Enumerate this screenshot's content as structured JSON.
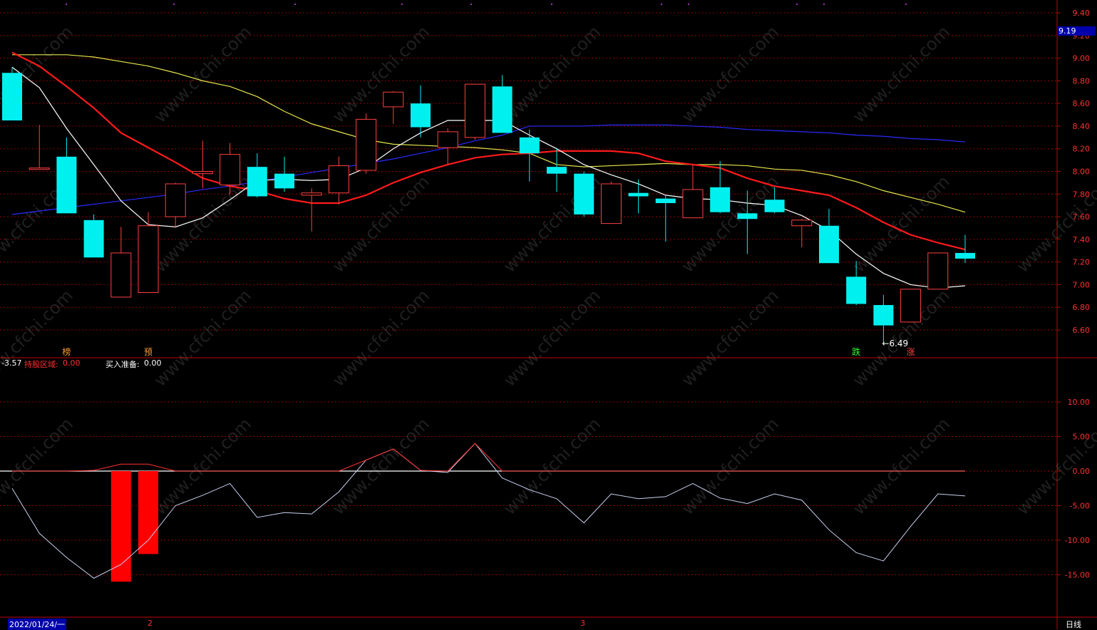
{
  "colors": {
    "background": "#000000",
    "grid": "#8b0000",
    "border": "#c00000",
    "up": "#ff4040",
    "down": "#00f0f0",
    "ma5": "#ffffff",
    "ma10": "#ff1a1a",
    "ma20": "#e6e64d",
    "ma60": "#2a2aff",
    "osc_line": "#c8d0f0",
    "osc_up": "#ff3030",
    "bar": "#ff0000",
    "axis_text": "#ff3030",
    "price_tag_bg": "#0000aa"
  },
  "price_axis": {
    "ticks": [
      "9.40",
      "9.20",
      "9.00",
      "8.80",
      "8.60",
      "8.40",
      "8.20",
      "8.00",
      "7.80",
      "7.60",
      "7.40",
      "7.20",
      "7.00",
      "6.80",
      "6.60"
    ],
    "ylim": [
      6.49,
      9.4
    ],
    "current": "9.19"
  },
  "markers": [
    {
      "text": "榜",
      "index": 2,
      "color": "#ff9b30"
    },
    {
      "text": "预",
      "index": 5,
      "color": "#ff9b30"
    },
    {
      "text": "跌",
      "index": 31,
      "color": "#30ff30"
    },
    {
      "text": "涨",
      "index": 33,
      "color": "#ff4040"
    }
  ],
  "low_label": {
    "text": "←6.49",
    "index": 32
  },
  "indicator_header": {
    "value": "-3.57",
    "hold_label": "持股区域:",
    "hold_value": "0.00",
    "buy_label": "买入准备:",
    "buy_value": "0.00"
  },
  "osc_axis": {
    "ticks": [
      "10.00",
      "5.00",
      "0.00",
      "-5.00",
      "-10.00",
      "-15.00"
    ],
    "ylim": [
      -20,
      15
    ]
  },
  "date_bar": {
    "start": "2022/01/24/一",
    "m2": "2",
    "m3": "3",
    "period": "日线"
  },
  "watermark": "www.cfchi.com",
  "chart_data": {
    "type": "candlestick",
    "candles": [
      {
        "o": 8.87,
        "h": 8.92,
        "l": 8.45,
        "c": 8.45
      },
      {
        "o": 8.03,
        "h": 8.41,
        "l": 8.03,
        "c": 8.03
      },
      {
        "o": 8.13,
        "h": 8.3,
        "l": 7.63,
        "c": 7.63
      },
      {
        "o": 7.57,
        "h": 7.62,
        "l": 7.24,
        "c": 7.24
      },
      {
        "o": 6.89,
        "h": 7.51,
        "l": 6.89,
        "c": 7.28
      },
      {
        "o": 6.93,
        "h": 7.64,
        "l": 6.93,
        "c": 7.52
      },
      {
        "o": 7.6,
        "h": 7.9,
        "l": 7.5,
        "c": 7.89
      },
      {
        "o": 7.98,
        "h": 8.27,
        "l": 7.85,
        "c": 8.0
      },
      {
        "o": 7.88,
        "h": 8.25,
        "l": 7.8,
        "c": 8.15
      },
      {
        "o": 8.04,
        "h": 8.16,
        "l": 7.77,
        "c": 7.78
      },
      {
        "o": 7.98,
        "h": 8.13,
        "l": 7.82,
        "c": 7.85
      },
      {
        "o": 7.79,
        "h": 7.85,
        "l": 7.47,
        "c": 7.81
      },
      {
        "o": 7.81,
        "h": 8.13,
        "l": 7.71,
        "c": 8.05
      },
      {
        "o": 8.01,
        "h": 8.51,
        "l": 7.98,
        "c": 8.46
      },
      {
        "o": 8.57,
        "h": 8.71,
        "l": 8.42,
        "c": 8.7
      },
      {
        "o": 8.6,
        "h": 8.76,
        "l": 8.3,
        "c": 8.39
      },
      {
        "o": 8.21,
        "h": 8.38,
        "l": 8.06,
        "c": 8.35
      },
      {
        "o": 8.3,
        "h": 8.77,
        "l": 8.28,
        "c": 8.77
      },
      {
        "o": 8.75,
        "h": 8.85,
        "l": 8.34,
        "c": 8.34
      },
      {
        "o": 8.3,
        "h": 8.37,
        "l": 7.91,
        "c": 8.16
      },
      {
        "o": 8.04,
        "h": 8.2,
        "l": 7.82,
        "c": 7.98
      },
      {
        "o": 7.98,
        "h": 8.0,
        "l": 7.6,
        "c": 7.62
      },
      {
        "o": 7.54,
        "h": 7.91,
        "l": 7.54,
        "c": 7.89
      },
      {
        "o": 7.81,
        "h": 7.93,
        "l": 7.63,
        "c": 7.78
      },
      {
        "o": 7.76,
        "h": 7.79,
        "l": 7.38,
        "c": 7.72
      },
      {
        "o": 7.59,
        "h": 8.06,
        "l": 7.59,
        "c": 7.84
      },
      {
        "o": 7.86,
        "h": 8.09,
        "l": 7.63,
        "c": 7.64
      },
      {
        "o": 7.63,
        "h": 7.83,
        "l": 7.27,
        "c": 7.58
      },
      {
        "o": 7.75,
        "h": 7.86,
        "l": 7.63,
        "c": 7.64
      },
      {
        "o": 7.52,
        "h": 7.58,
        "l": 7.33,
        "c": 7.57
      },
      {
        "o": 7.52,
        "h": 7.67,
        "l": 7.19,
        "c": 7.19
      },
      {
        "o": 7.07,
        "h": 7.21,
        "l": 6.82,
        "c": 6.83
      },
      {
        "o": 6.82,
        "h": 6.91,
        "l": 6.49,
        "c": 6.64
      },
      {
        "o": 6.67,
        "h": 6.96,
        "l": 6.67,
        "c": 6.96
      },
      {
        "o": 6.96,
        "h": 7.28,
        "l": 6.96,
        "c": 7.28
      },
      {
        "o": 7.28,
        "h": 7.44,
        "l": 7.19,
        "c": 7.23
      }
    ],
    "ma5": [
      8.92,
      8.74,
      8.38,
      8.06,
      7.74,
      7.53,
      7.51,
      7.59,
      7.75,
      7.92,
      7.93,
      7.92,
      7.93,
      8.03,
      8.2,
      8.34,
      8.45,
      8.45,
      8.45,
      8.32,
      8.2,
      8.06,
      7.97,
      7.89,
      7.79,
      7.76,
      7.75,
      7.72,
      7.7,
      7.61,
      7.48,
      7.27,
      7.1,
      7.0,
      6.97,
      6.99
    ],
    "ma10": [
      9.05,
      8.93,
      8.75,
      8.56,
      8.34,
      8.21,
      8.08,
      7.94,
      7.87,
      7.83,
      7.76,
      7.72,
      7.72,
      7.79,
      7.9,
      7.99,
      8.06,
      8.12,
      8.15,
      8.16,
      8.18,
      8.18,
      8.18,
      8.16,
      8.09,
      8.06,
      8.03,
      7.94,
      7.87,
      7.83,
      7.79,
      7.68,
      7.55,
      7.44,
      7.37,
      7.31
    ],
    "ma20": [
      9.03,
      9.03,
      9.03,
      9.01,
      8.97,
      8.93,
      8.87,
      8.8,
      8.75,
      8.66,
      8.53,
      8.42,
      8.35,
      8.28,
      8.24,
      8.23,
      8.22,
      8.21,
      8.19,
      8.16,
      8.06,
      8.04,
      8.05,
      8.06,
      8.07,
      8.06,
      8.06,
      8.05,
      8.02,
      8.01,
      7.97,
      7.91,
      7.83,
      7.77,
      7.71,
      7.64
    ],
    "ma60": [
      7.62,
      7.65,
      7.68,
      7.71,
      7.74,
      7.77,
      7.8,
      7.84,
      7.87,
      7.91,
      7.95,
      7.99,
      8.03,
      8.07,
      8.11,
      8.16,
      8.21,
      8.27,
      8.32,
      8.4,
      8.4,
      8.4,
      8.41,
      8.41,
      8.41,
      8.4,
      8.39,
      8.37,
      8.36,
      8.35,
      8.34,
      8.32,
      8.31,
      8.29,
      8.28,
      8.26
    ],
    "osc": [
      -2.5,
      -9.0,
      -12.5,
      -15.5,
      -13.5,
      -10.0,
      -5.0,
      -3.5,
      -1.8,
      -6.7,
      -6.0,
      -6.2,
      -3.0,
      1.6,
      3.2,
      0.1,
      -0.2,
      4.0,
      -1.0,
      -2.7,
      -4.0,
      -7.5,
      -3.3,
      -4.0,
      -3.7,
      -1.8,
      -3.9,
      -4.7,
      -3.3,
      -4.2,
      -8.5,
      -11.8,
      -13.0,
      -8.0,
      -3.3,
      -3.6
    ],
    "osc_pos": [
      0,
      0,
      0,
      0.1,
      1,
      1,
      0,
      0,
      0,
      0,
      0,
      0,
      0,
      1.6,
      3.2,
      0.1,
      0,
      4.0,
      0,
      0,
      0,
      0,
      0,
      0,
      0,
      0,
      0,
      0,
      0,
      0,
      0,
      0,
      0,
      0,
      0,
      0
    ],
    "bars": [
      0,
      0,
      0,
      0,
      -16,
      -12,
      0,
      0,
      0,
      0,
      0,
      0,
      0,
      0,
      0,
      0,
      0,
      0,
      0,
      0,
      0,
      0,
      0,
      0,
      0,
      0,
      0,
      0,
      0,
      0,
      0,
      0,
      0,
      0,
      0,
      0
    ]
  }
}
